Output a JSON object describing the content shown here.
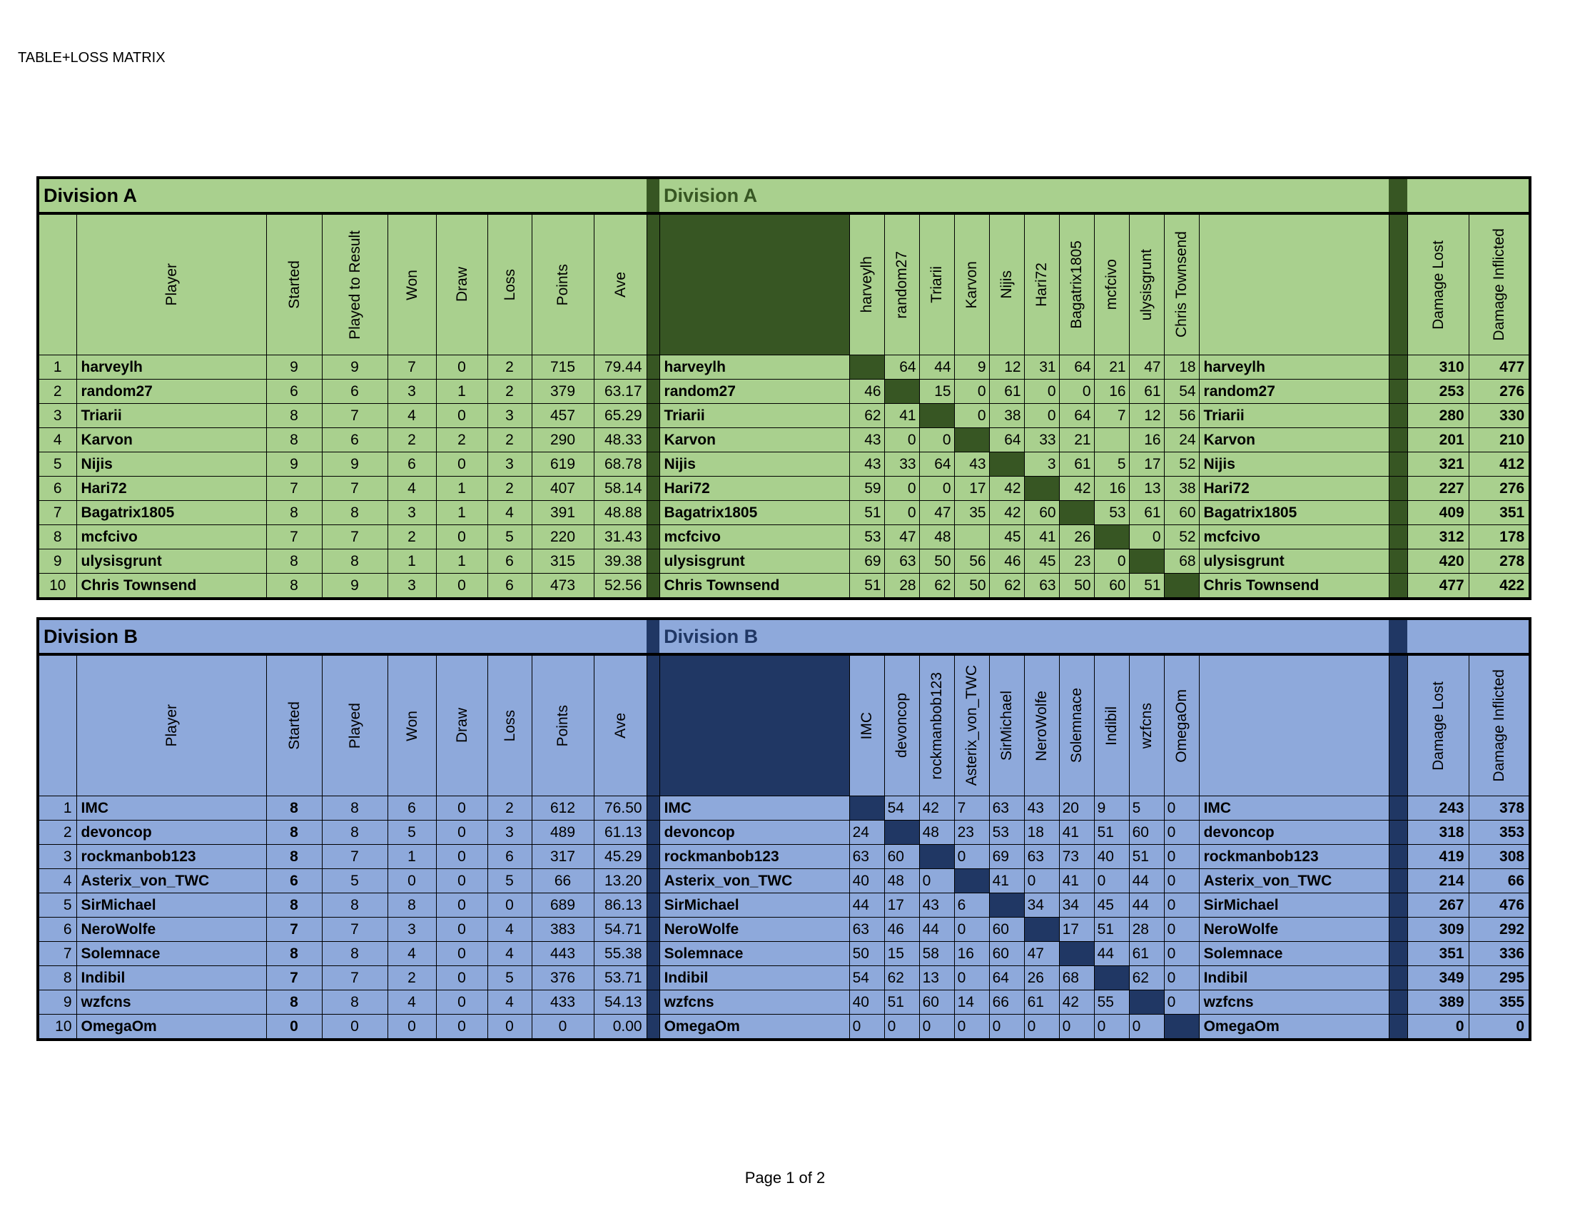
{
  "document_title": "TABLE+LOSS MATRIX",
  "page_label": "Page 1 of 2",
  "divisions": [
    {
      "title": "Division A",
      "colors": {
        "light": "#a9d08e",
        "dark": "#375623"
      },
      "stat_headers": [
        "Player",
        "Started",
        "Played to Result",
        "Won",
        "Draw",
        "Loss",
        "Points",
        "Ave"
      ],
      "matrix_players": [
        "harveylh",
        "random27",
        "Triarii",
        "Karvon",
        "Nijis",
        "Hari72",
        "Bagatrix1805",
        "mcfcivo",
        "ulysisgrunt",
        "Chris Townsend"
      ],
      "damage_headers": [
        "Damage Lost",
        "Damage Inflicted"
      ],
      "rows": [
        {
          "rank": "1",
          "player": "harveylh",
          "started": "9",
          "played": "9",
          "won": "7",
          "draw": "0",
          "loss": "2",
          "points": "715",
          "ave": "79.44",
          "matrix": [
            "",
            "64",
            "44",
            "9",
            "12",
            "31",
            "64",
            "21",
            "47",
            "18"
          ],
          "damage_lost": "310",
          "damage_inflicted": "477"
        },
        {
          "rank": "2",
          "player": "random27",
          "started": "6",
          "played": "6",
          "won": "3",
          "draw": "1",
          "loss": "2",
          "points": "379",
          "ave": "63.17",
          "matrix": [
            "46",
            "",
            "15",
            "0",
            "61",
            "0",
            "0",
            "16",
            "61",
            "54"
          ],
          "damage_lost": "253",
          "damage_inflicted": "276"
        },
        {
          "rank": "3",
          "player": "Triarii",
          "started": "8",
          "played": "7",
          "won": "4",
          "draw": "0",
          "loss": "3",
          "points": "457",
          "ave": "65.29",
          "matrix": [
            "62",
            "41",
            "",
            "0",
            "38",
            "0",
            "64",
            "7",
            "12",
            "56"
          ],
          "damage_lost": "280",
          "damage_inflicted": "330"
        },
        {
          "rank": "4",
          "player": "Karvon",
          "started": "8",
          "played": "6",
          "won": "2",
          "draw": "2",
          "loss": "2",
          "points": "290",
          "ave": "48.33",
          "matrix": [
            "43",
            "0",
            "0",
            "",
            "64",
            "33",
            "21",
            "",
            "16",
            "24"
          ],
          "damage_lost": "201",
          "damage_inflicted": "210"
        },
        {
          "rank": "5",
          "player": "Nijis",
          "started": "9",
          "played": "9",
          "won": "6",
          "draw": "0",
          "loss": "3",
          "points": "619",
          "ave": "68.78",
          "matrix": [
            "43",
            "33",
            "64",
            "43",
            "",
            "3",
            "61",
            "5",
            "17",
            "52"
          ],
          "damage_lost": "321",
          "damage_inflicted": "412"
        },
        {
          "rank": "6",
          "player": "Hari72",
          "started": "7",
          "played": "7",
          "won": "4",
          "draw": "1",
          "loss": "2",
          "points": "407",
          "ave": "58.14",
          "matrix": [
            "59",
            "0",
            "0",
            "17",
            "42",
            "",
            "42",
            "16",
            "13",
            "38"
          ],
          "damage_lost": "227",
          "damage_inflicted": "276"
        },
        {
          "rank": "7",
          "player": "Bagatrix1805",
          "started": "8",
          "played": "8",
          "won": "3",
          "draw": "1",
          "loss": "4",
          "points": "391",
          "ave": "48.88",
          "matrix": [
            "51",
            "0",
            "47",
            "35",
            "42",
            "60",
            "",
            "53",
            "61",
            "60"
          ],
          "damage_lost": "409",
          "damage_inflicted": "351"
        },
        {
          "rank": "8",
          "player": "mcfcivo",
          "started": "7",
          "played": "7",
          "won": "2",
          "draw": "0",
          "loss": "5",
          "points": "220",
          "ave": "31.43",
          "matrix": [
            "53",
            "47",
            "48",
            "",
            "45",
            "41",
            "26",
            "",
            "0",
            "52"
          ],
          "damage_lost": "312",
          "damage_inflicted": "178"
        },
        {
          "rank": "9",
          "player": "ulysisgrunt",
          "started": "8",
          "played": "8",
          "won": "1",
          "draw": "1",
          "loss": "6",
          "points": "315",
          "ave": "39.38",
          "matrix": [
            "69",
            "63",
            "50",
            "56",
            "46",
            "45",
            "23",
            "0",
            "",
            "68"
          ],
          "damage_lost": "420",
          "damage_inflicted": "278"
        },
        {
          "rank": "10",
          "player": "Chris Townsend",
          "started": "8",
          "played": "9",
          "won": "3",
          "draw": "0",
          "loss": "6",
          "points": "473",
          "ave": "52.56",
          "matrix": [
            "51",
            "28",
            "62",
            "50",
            "62",
            "63",
            "50",
            "60",
            "51",
            ""
          ],
          "damage_lost": "477",
          "damage_inflicted": "422"
        }
      ]
    },
    {
      "title": "Division B",
      "colors": {
        "light": "#8ea9db",
        "dark": "#203764"
      },
      "stat_headers": [
        "Player",
        "Started",
        "Played",
        "Won",
        "Draw",
        "Loss",
        "Points",
        "Ave"
      ],
      "matrix_players": [
        "IMC",
        "devoncop",
        "rockmanbob123",
        "Asterix_von_TWC",
        "SirMichael",
        "NeroWolfe",
        "Solemnace",
        "Indibil",
        "wzfcns",
        "OmegaOm"
      ],
      "damage_headers": [
        "Damage Lost",
        "Damage Inflicted"
      ],
      "rows": [
        {
          "rank": "1",
          "player": "IMC",
          "started": "8",
          "played": "8",
          "won": "6",
          "draw": "0",
          "loss": "2",
          "points": "612",
          "ave": "76.50",
          "matrix": [
            "",
            "54",
            "42",
            "7",
            "63",
            "43",
            "20",
            "9",
            "5",
            "0"
          ],
          "damage_lost": "243",
          "damage_inflicted": "378"
        },
        {
          "rank": "2",
          "player": "devoncop",
          "started": "8",
          "played": "8",
          "won": "5",
          "draw": "0",
          "loss": "3",
          "points": "489",
          "ave": "61.13",
          "matrix": [
            "24",
            "",
            "48",
            "23",
            "53",
            "18",
            "41",
            "51",
            "60",
            "0"
          ],
          "damage_lost": "318",
          "damage_inflicted": "353"
        },
        {
          "rank": "3",
          "player": "rockmanbob123",
          "started": "8",
          "played": "7",
          "won": "1",
          "draw": "0",
          "loss": "6",
          "points": "317",
          "ave": "45.29",
          "matrix": [
            "63",
            "60",
            "",
            "0",
            "69",
            "63",
            "73",
            "40",
            "51",
            "0"
          ],
          "damage_lost": "419",
          "damage_inflicted": "308"
        },
        {
          "rank": "4",
          "player": "Asterix_von_TWC",
          "started": "6",
          "played": "5",
          "won": "0",
          "draw": "0",
          "loss": "5",
          "points": "66",
          "ave": "13.20",
          "matrix": [
            "40",
            "48",
            "0",
            "",
            "41",
            "0",
            "41",
            "0",
            "44",
            "0"
          ],
          "damage_lost": "214",
          "damage_inflicted": "66"
        },
        {
          "rank": "5",
          "player": "SirMichael",
          "started": "8",
          "played": "8",
          "won": "8",
          "draw": "0",
          "loss": "0",
          "points": "689",
          "ave": "86.13",
          "matrix": [
            "44",
            "17",
            "43",
            "6",
            "",
            "34",
            "34",
            "45",
            "44",
            "0"
          ],
          "damage_lost": "267",
          "damage_inflicted": "476"
        },
        {
          "rank": "6",
          "player": "NeroWolfe",
          "started": "7",
          "played": "7",
          "won": "3",
          "draw": "0",
          "loss": "4",
          "points": "383",
          "ave": "54.71",
          "matrix": [
            "63",
            "46",
            "44",
            "0",
            "60",
            "",
            "17",
            "51",
            "28",
            "0"
          ],
          "damage_lost": "309",
          "damage_inflicted": "292"
        },
        {
          "rank": "7",
          "player": "Solemnace",
          "started": "8",
          "played": "8",
          "won": "4",
          "draw": "0",
          "loss": "4",
          "points": "443",
          "ave": "55.38",
          "matrix": [
            "50",
            "15",
            "58",
            "16",
            "60",
            "47",
            "",
            "44",
            "61",
            "0"
          ],
          "damage_lost": "351",
          "damage_inflicted": "336"
        },
        {
          "rank": "8",
          "player": "Indibil",
          "started": "7",
          "played": "7",
          "won": "2",
          "draw": "0",
          "loss": "5",
          "points": "376",
          "ave": "53.71",
          "matrix": [
            "54",
            "62",
            "13",
            "0",
            "64",
            "26",
            "68",
            "",
            "62",
            "0"
          ],
          "damage_lost": "349",
          "damage_inflicted": "295"
        },
        {
          "rank": "9",
          "player": "wzfcns",
          "started": "8",
          "played": "8",
          "won": "4",
          "draw": "0",
          "loss": "4",
          "points": "433",
          "ave": "54.13",
          "matrix": [
            "40",
            "51",
            "60",
            "14",
            "66",
            "61",
            "42",
            "55",
            "",
            "0"
          ],
          "damage_lost": "389",
          "damage_inflicted": "355"
        },
        {
          "rank": "10",
          "player": "OmegaOm",
          "started": "0",
          "played": "0",
          "won": "0",
          "draw": "0",
          "loss": "0",
          "points": "0",
          "ave": "0.00",
          "matrix": [
            "0",
            "0",
            "0",
            "0",
            "0",
            "0",
            "0",
            "0",
            "0",
            ""
          ],
          "damage_lost": "0",
          "damage_inflicted": "0"
        }
      ]
    }
  ]
}
